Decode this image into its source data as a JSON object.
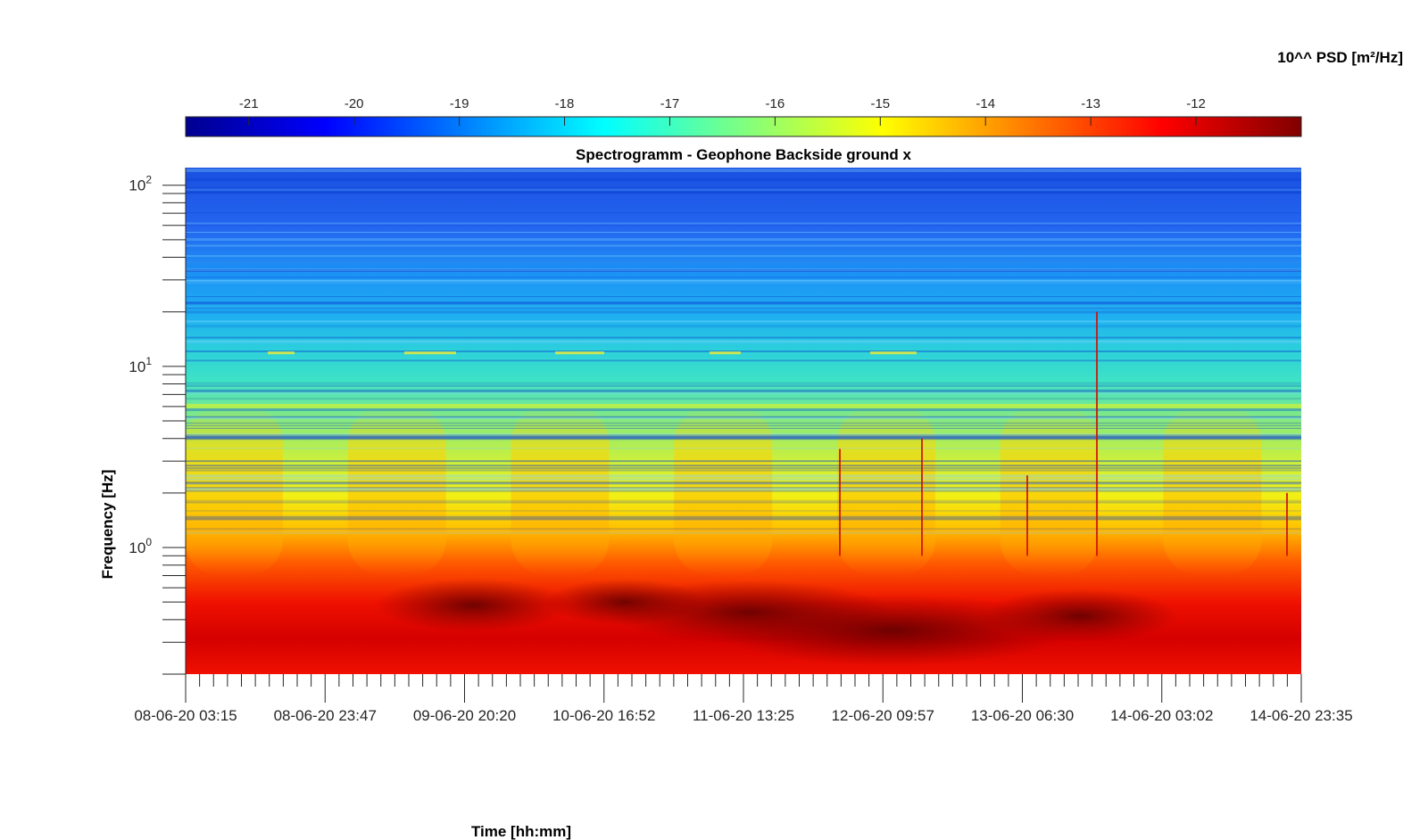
{
  "chart_data": {
    "type": "heatmap",
    "title": "Spectrogramm - Geophone Backside ground x",
    "xlabel": "Time [hh:mm]",
    "ylabel": "Frequency [Hz]",
    "x_ticks": [
      "08-06-20 03:15",
      "08-06-20 23:47",
      "09-06-20 20:20",
      "10-06-20 16:52",
      "11-06-20 13:25",
      "12-06-20 09:57",
      "13-06-20 06:30",
      "14-06-20 03:02",
      "14-06-20 23:35"
    ],
    "x_range": [
      "08-06-20 03:15",
      "14-06-20 23:35"
    ],
    "y_scale": "log",
    "y_range": [
      0.2,
      125
    ],
    "y_ticks": [
      {
        "value": 1,
        "base": "10",
        "exponent": "0"
      },
      {
        "value": 10,
        "base": "10",
        "exponent": "1"
      },
      {
        "value": 100,
        "base": "10",
        "exponent": "2"
      }
    ],
    "colorbar": {
      "label": "10^^ PSD [m²/Hz]",
      "position": "top",
      "range": [
        -21.6,
        -11
      ],
      "ticks": [
        "-21",
        "-20",
        "-19",
        "-18",
        "-17",
        "-16",
        "-15",
        "-14",
        "-13",
        "-12"
      ],
      "colormap": "jet"
    },
    "bands": [
      {
        "f_low": 0.2,
        "f_high": 0.35,
        "log_psd": -12.3
      },
      {
        "f_low": 0.35,
        "f_high": 0.7,
        "log_psd": -12.6
      },
      {
        "f_low": 0.7,
        "f_high": 1.0,
        "log_psd": -13.8
      },
      {
        "f_low": 1.0,
        "f_high": 2.0,
        "log_psd": -15.0
      },
      {
        "f_low": 2.0,
        "f_high": 5.0,
        "log_psd": -16.4
      },
      {
        "f_low": 5.0,
        "f_high": 15.0,
        "log_psd": -17.3
      },
      {
        "f_low": 15.0,
        "f_high": 40.0,
        "log_psd": -18.2
      },
      {
        "f_low": 40.0,
        "f_high": 125.0,
        "log_psd": -19.8
      }
    ],
    "spectral_lines_hz": [
      6.0,
      11.8
    ],
    "grid": false
  }
}
